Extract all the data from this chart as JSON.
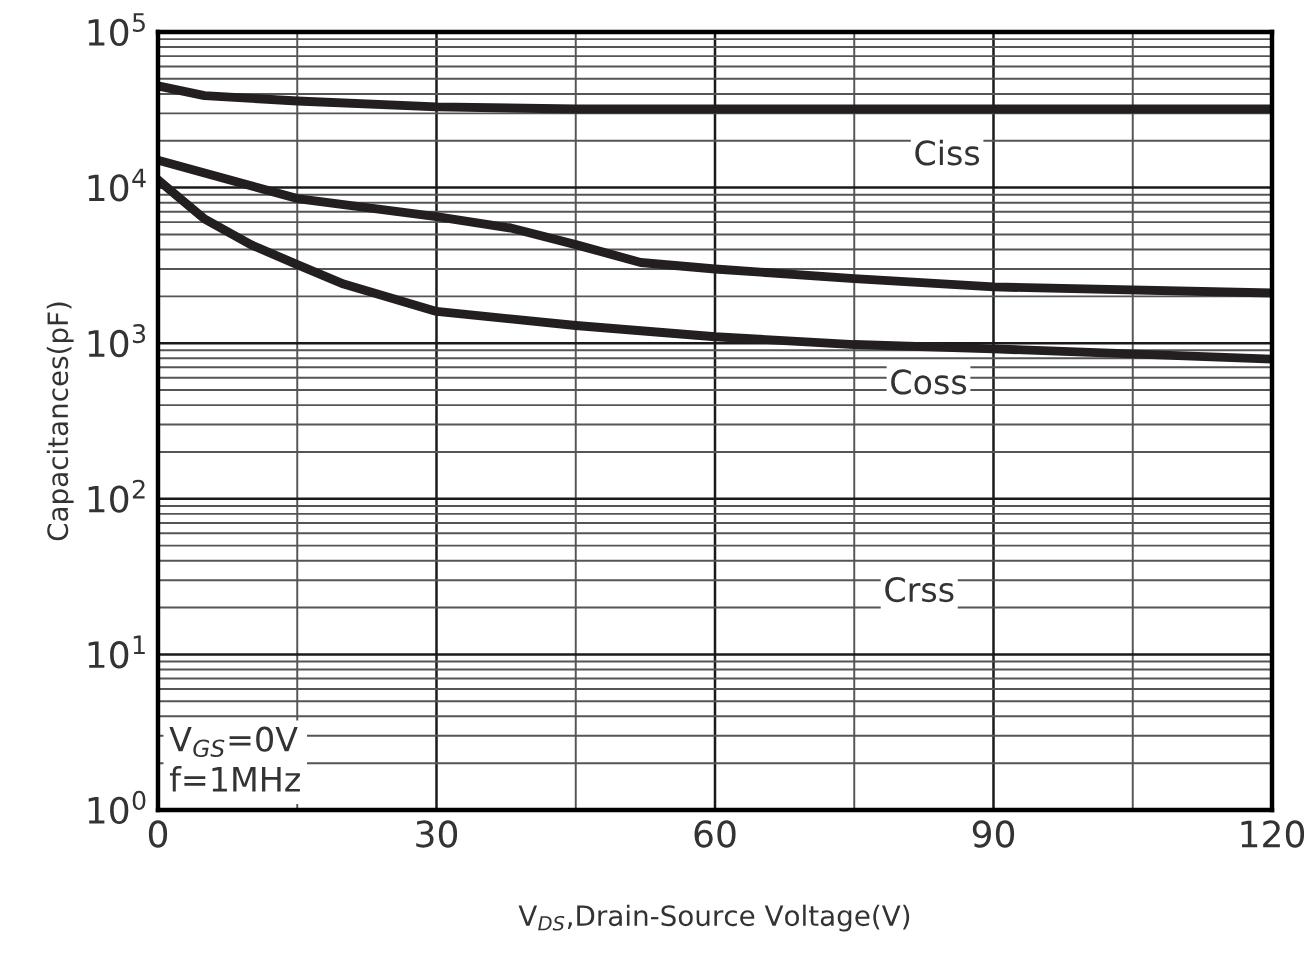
{
  "chart_data": {
    "type": "line",
    "xlabel": "V$_{DS}$,Drain-Source Voltage(V)",
    "ylabel": "Capacitances(pF)",
    "log": "y",
    "grid": true,
    "marker": "none",
    "line_style": "solid",
    "xlim": [
      0,
      120
    ],
    "xticks": [
      0,
      30,
      60,
      90,
      120
    ],
    "ylim": [
      1,
      100000
    ],
    "yticks": [
      {
        "value": 1,
        "label": "10$^{0}$"
      },
      {
        "value": 10,
        "label": "10$^{1}$"
      },
      {
        "value": 100,
        "label": "10$^{2}$"
      },
      {
        "value": 1000,
        "label": "10$^{3}$"
      },
      {
        "value": 10000,
        "label": "10$^{4}$"
      },
      {
        "value": 100000,
        "label": "10$^{5}$"
      }
    ],
    "series": [
      {
        "color": "#231f20",
        "x": [
          0,
          5,
          15,
          30,
          45,
          60,
          90,
          120
        ],
        "values": [
          45000,
          39000,
          36000,
          33000,
          32000,
          32000,
          32000,
          32000
        ]
      },
      {
        "color": "#231f20",
        "x": [
          0,
          15,
          30,
          38,
          45,
          52,
          60,
          75,
          90,
          120
        ],
        "values": [
          15000,
          8500,
          6500,
          5500,
          4300,
          3300,
          3000,
          2600,
          2300,
          2100
        ]
      },
      {
        "color": "#231f20",
        "x": [
          0,
          5,
          10,
          15,
          20,
          30,
          45,
          60,
          75,
          90,
          120
        ],
        "values": [
          11200,
          6300,
          4300,
          3200,
          2400,
          1600,
          1300,
          1100,
          980,
          920,
          790
        ]
      }
    ],
    "annotations": [
      {
        "text": "Ciss",
        "x": 85,
        "y": 16000
      },
      {
        "text": "Coss",
        "x": 83,
        "y": 540
      },
      {
        "text": "Crss",
        "x": 82,
        "y": 25
      },
      "V$_{GS}$=0V\nf=1MHz"
    ]
  }
}
